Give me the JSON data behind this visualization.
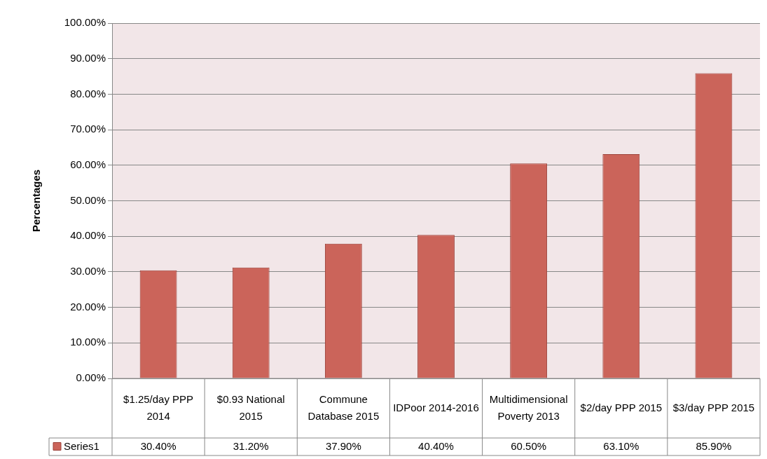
{
  "chart_data": {
    "type": "bar",
    "ylabel": "Percentages",
    "categories": [
      "$1.25/day PPP 2014",
      "$0.93 National 2015",
      "Commune Database 2015",
      "IDPoor 2014-2016",
      "Multidimensional Poverty 2013",
      "$2/day PPP 2015",
      "$3/day PPP 2015"
    ],
    "series": [
      {
        "name": "Series1",
        "color": "#cb645a",
        "values": [
          30.4,
          31.2,
          37.9,
          40.4,
          60.5,
          63.1,
          85.9
        ],
        "value_labels": [
          "30.40%",
          "31.20%",
          "37.90%",
          "40.40%",
          "60.50%",
          "63.10%",
          "85.90%"
        ]
      }
    ],
    "ylim": [
      0,
      100
    ],
    "yticks": [
      {
        "value": 0,
        "label": "0.00%"
      },
      {
        "value": 10,
        "label": "10.00%"
      },
      {
        "value": 20,
        "label": "20.00%"
      },
      {
        "value": 30,
        "label": "30.00%"
      },
      {
        "value": 40,
        "label": "40.00%"
      },
      {
        "value": 50,
        "label": "50.00%"
      },
      {
        "value": 60,
        "label": "60.00%"
      },
      {
        "value": 70,
        "label": "70.00%"
      },
      {
        "value": 80,
        "label": "80.00%"
      },
      {
        "value": 90,
        "label": "90.00%"
      },
      {
        "value": 100,
        "label": "100.00%"
      }
    ],
    "grid": "y"
  }
}
